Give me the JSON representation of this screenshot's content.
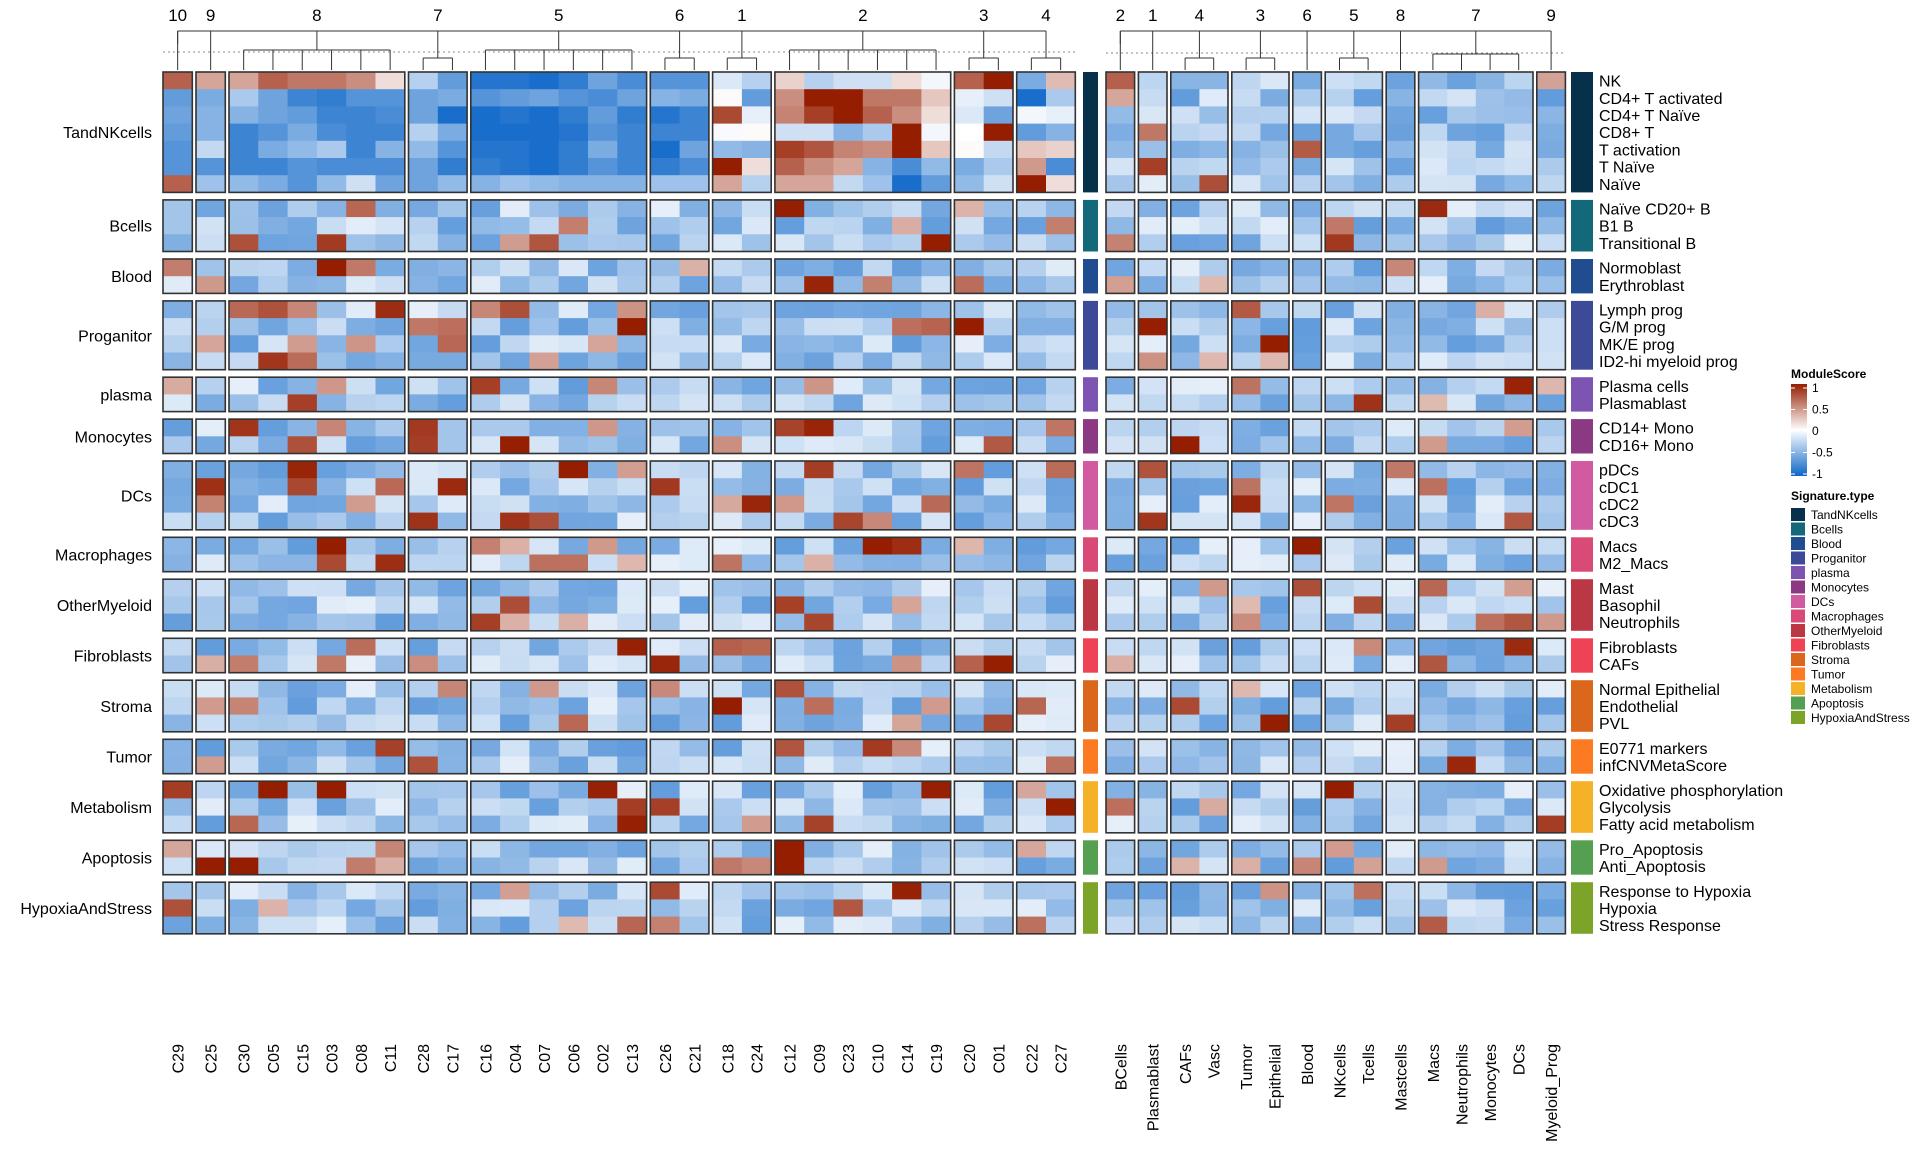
{
  "chart_data": {
    "type": "heatmap",
    "title": "",
    "value_legend": {
      "title": "ModuleScore",
      "ticks": [
        "1",
        "0.5",
        "0",
        "-0.5",
        "-1"
      ],
      "range": [
        -1,
        1
      ],
      "colors": {
        "low": "#0d66c8",
        "mid": "#ffffff",
        "high": "#951d00"
      }
    },
    "group_legend": {
      "title": "Signature.type",
      "entries": [
        {
          "name": "TandNKcells",
          "color": "#07304a"
        },
        {
          "name": "Bcells",
          "color": "#13687a"
        },
        {
          "name": "Blood",
          "color": "#1f4d8f"
        },
        {
          "name": "Proganitor",
          "color": "#3d4a98"
        },
        {
          "name": "plasma",
          "color": "#7e54b2"
        },
        {
          "name": "Monocytes",
          "color": "#8c3983"
        },
        {
          "name": "DCs",
          "color": "#d15aa0"
        },
        {
          "name": "Macrophages",
          "color": "#d94a76"
        },
        {
          "name": "OtherMyeloid",
          "color": "#bc3744"
        },
        {
          "name": "Fibroblasts",
          "color": "#ee4357"
        },
        {
          "name": "Stroma",
          "color": "#da671b"
        },
        {
          "name": "Tumor",
          "color": "#fc7a22"
        },
        {
          "name": "Metabolism",
          "color": "#f5b228"
        },
        {
          "name": "Apoptosis",
          "color": "#559f51"
        },
        {
          "name": "HypoxiaAndStress",
          "color": "#7ba428"
        }
      ]
    },
    "row_groups": [
      {
        "name": "TandNKcells",
        "rows": [
          "NK",
          "CD4+ T activated",
          "CD4+ T Naïve",
          "CD8+ T",
          "T activation",
          "T Naïve",
          "Naïve"
        ]
      },
      {
        "name": "Bcells",
        "rows": [
          "Naïve CD20+ B",
          "B1 B",
          "Transitional B"
        ]
      },
      {
        "name": "Blood",
        "rows": [
          "Normoblast",
          "Erythroblast"
        ]
      },
      {
        "name": "Proganitor",
        "rows": [
          "Lymph prog",
          "G/M prog",
          "MK/E prog",
          "ID2-hi myeloid prog"
        ]
      },
      {
        "name": "plasma",
        "rows": [
          "Plasma cells",
          "Plasmablast"
        ]
      },
      {
        "name": "Monocytes",
        "rows": [
          "CD14+ Mono",
          "CD16+ Mono"
        ]
      },
      {
        "name": "DCs",
        "rows": [
          "pDCs",
          "cDC1",
          "cDC2",
          "cDC3"
        ]
      },
      {
        "name": "Macrophages",
        "rows": [
          "Macs",
          "M2_Macs"
        ]
      },
      {
        "name": "OtherMyeloid",
        "rows": [
          "Mast",
          "Basophil",
          "Neutrophils"
        ]
      },
      {
        "name": "Fibroblasts",
        "rows": [
          "Fibroblasts",
          "CAFs"
        ]
      },
      {
        "name": "Stroma",
        "rows": [
          "Normal Epithelial",
          "Endothelial",
          "PVL"
        ]
      },
      {
        "name": "Tumor",
        "rows": [
          "E0771 markers",
          "infCNVMetaScore"
        ]
      },
      {
        "name": "Metabolism",
        "rows": [
          "Oxidative phosphorylation",
          "Glycolysis",
          "Fatty acid metabolism"
        ]
      },
      {
        "name": "Apoptosis",
        "rows": [
          "Pro_Apoptosis",
          "Anti_Apoptosis"
        ]
      },
      {
        "name": "HypoxiaAndStress",
        "rows": [
          "Response to Hypoxia",
          "Hypoxia",
          "Stress Response"
        ]
      }
    ],
    "heatmaps": [
      {
        "name": "clusters",
        "column_splits": [
          {
            "label": "10",
            "columns": [
              "C29"
            ]
          },
          {
            "label": "9",
            "columns": [
              "C25"
            ]
          },
          {
            "label": "8",
            "columns": [
              "C30",
              "C05",
              "C15",
              "C03",
              "C08",
              "C11"
            ]
          },
          {
            "label": "7",
            "columns": [
              "C28",
              "C17"
            ]
          },
          {
            "label": "5",
            "columns": [
              "C16",
              "C04",
              "C07",
              "C06",
              "C02",
              "C13"
            ]
          },
          {
            "label": "6",
            "columns": [
              "C26",
              "C21"
            ]
          },
          {
            "label": "1",
            "columns": [
              "C18",
              "C24"
            ]
          },
          {
            "label": "2",
            "columns": [
              "C12",
              "C09",
              "C23",
              "C10",
              "C14",
              "C19"
            ]
          },
          {
            "label": "3",
            "columns": [
              "C20",
              "C01"
            ]
          },
          {
            "label": "4",
            "columns": [
              "C22",
              "C27"
            ]
          }
        ],
        "values": [
          [
            0.7,
            0.4,
            0.4,
            0.7,
            0.6,
            0.6,
            0.5,
            0.15,
            -0.3,
            -0.65,
            -0.9,
            -0.9,
            -0.95,
            -0.85,
            -0.6,
            -0.75,
            -0.7,
            -0.7,
            -0.15,
            -0.3,
            0.2,
            -0.3,
            -0.2,
            -0.2,
            0.15,
            -0.05,
            0.7,
            1.0,
            -0.55,
            0.3
          ],
          [
            -0.65,
            -0.55,
            -0.35,
            -0.6,
            -0.8,
            -0.85,
            -0.7,
            -0.7,
            -0.6,
            -0.55,
            -0.7,
            -0.65,
            -0.6,
            -0.7,
            -0.75,
            -0.6,
            -0.5,
            -0.55,
            0.02,
            -0.65,
            0.5,
            1.0,
            1.0,
            0.6,
            0.6,
            0.25,
            -0.1,
            -0.2,
            -0.95,
            -0.35
          ],
          [
            -0.6,
            -0.5,
            -0.5,
            -0.6,
            -0.65,
            -0.8,
            -0.8,
            -0.75,
            -0.6,
            -0.95,
            -0.95,
            -0.9,
            -0.95,
            -0.85,
            -0.65,
            -0.85,
            -0.9,
            -0.8,
            0.8,
            -0.1,
            0.55,
            0.85,
            1.0,
            0.7,
            0.5,
            0.15,
            -0.15,
            -0.6,
            -0.05,
            -0.1
          ],
          [
            -0.65,
            -0.5,
            -0.8,
            -0.7,
            -0.55,
            -0.75,
            -0.8,
            -0.8,
            -0.3,
            -0.55,
            -0.95,
            -0.95,
            -0.95,
            -0.9,
            -0.7,
            -0.8,
            -0.8,
            -0.8,
            -0.03,
            0.02,
            -0.2,
            -0.2,
            -0.5,
            -0.35,
            1.0,
            -0.05,
            0.0,
            1.0,
            -0.65,
            -0.5
          ],
          [
            -0.7,
            -0.25,
            -0.8,
            -0.55,
            -0.45,
            -0.35,
            -0.8,
            -0.5,
            -0.45,
            -0.7,
            -0.9,
            -0.9,
            -0.95,
            -0.85,
            -0.55,
            -0.8,
            -0.95,
            -0.6,
            -0.45,
            -0.5,
            0.85,
            0.75,
            0.55,
            0.5,
            1.0,
            0.25,
            0.02,
            -0.25,
            0.25,
            0.2
          ],
          [
            -0.7,
            -0.7,
            -0.8,
            -0.8,
            -0.7,
            -0.75,
            -0.75,
            -0.75,
            -0.6,
            -0.85,
            -0.85,
            -0.9,
            -0.95,
            -0.85,
            -0.7,
            -0.8,
            -0.85,
            -0.75,
            1.0,
            0.15,
            0.7,
            0.5,
            0.4,
            -0.5,
            -0.75,
            -0.45,
            -0.55,
            -0.35,
            0.45,
            -0.75
          ],
          [
            0.7,
            -0.4,
            -0.45,
            -0.55,
            -0.7,
            -0.45,
            -0.2,
            -0.6,
            -0.6,
            -0.45,
            -0.5,
            -0.4,
            -0.45,
            -0.5,
            -0.5,
            -0.5,
            -0.4,
            -0.4,
            0.4,
            -0.3,
            0.4,
            0.4,
            -0.25,
            -0.4,
            -0.95,
            -0.65,
            -0.45,
            -0.2,
            1.0,
            0.15
          ]
        ]
      },
      {
        "name": "cell_types",
        "column_splits": [
          {
            "label": "2",
            "columns": [
              "BCells"
            ]
          },
          {
            "label": "1",
            "columns": [
              "Plasmablast"
            ]
          },
          {
            "label": "4",
            "columns": [
              "CAFs",
              "Vasc"
            ]
          },
          {
            "label": "3",
            "columns": [
              "Tumor",
              "Epithelial"
            ]
          },
          {
            "label": "6",
            "columns": [
              "Blood"
            ]
          },
          {
            "label": "5",
            "columns": [
              "NKcells",
              "Tcells"
            ]
          },
          {
            "label": "8",
            "columns": [
              "Mastcells"
            ]
          },
          {
            "label": "7",
            "columns": [
              "Macs",
              "Neutrophils",
              "Monocytes",
              "DCs"
            ]
          },
          {
            "label": "9",
            "columns": [
              "Myeloid_Prog"
            ]
          }
        ]
      }
    ]
  }
}
